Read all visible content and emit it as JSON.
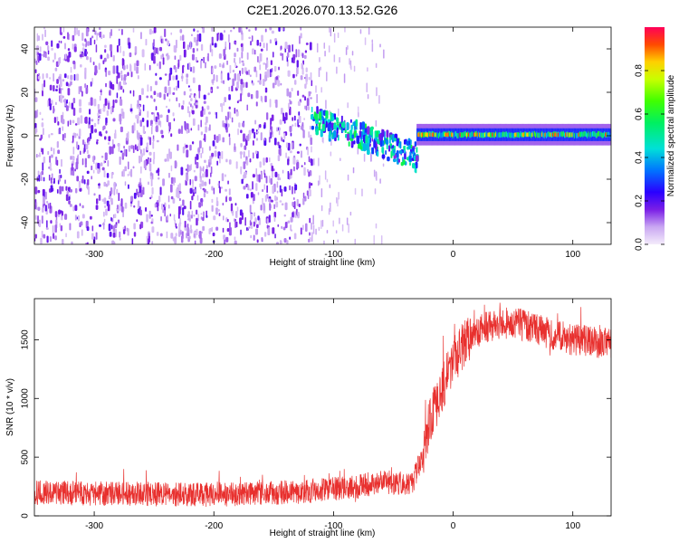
{
  "page_title": "C2E1.2026.070.13.52.G26",
  "chart_data": [
    {
      "type": "heatmap",
      "name": "spectrogram",
      "xlabel": "Height of straight line (km)",
      "ylabel": "Frequency (Hz)",
      "xlim": [
        -350,
        132
      ],
      "ylim": [
        -50,
        50
      ],
      "x_ticks": [
        -300,
        -200,
        -100,
        0,
        100
      ],
      "y_ticks": [
        -40,
        -20,
        0,
        20,
        40
      ],
      "x_tick_labels": [
        "-300",
        "-200",
        "-100",
        "0",
        "100"
      ],
      "y_tick_labels": [
        "-40",
        "-20",
        "0",
        "20",
        "40"
      ],
      "regions": [
        {
          "description": "noise",
          "x_range": [
            -350,
            -118
          ],
          "y_range": [
            -50,
            50
          ],
          "amplitude": [
            0.05,
            0.2
          ]
        },
        {
          "description": "transition band",
          "x_range": [
            -118,
            -30
          ],
          "center_y": [
            8,
            -10
          ],
          "amplitude": [
            0.15,
            0.6
          ]
        },
        {
          "description": "stable tone",
          "x_range": [
            -30,
            132
          ],
          "center_y": 0,
          "amplitude": [
            0.3,
            0.95
          ]
        }
      ],
      "colorbar": {
        "label": "Normalized spectral amplitude",
        "range": [
          0.0,
          1.0
        ],
        "ticks": [
          0.0,
          0.2,
          0.4,
          0.6,
          0.8
        ],
        "tick_labels": [
          "0.0",
          "0.2",
          "0.4",
          "0.6",
          "0.8"
        ]
      }
    },
    {
      "type": "line",
      "name": "snr",
      "xlabel": "Height of straight line (km)",
      "ylabel": "SNR (10 * v/v)",
      "xlim": [
        -350,
        132
      ],
      "ylim": [
        0,
        1850
      ],
      "x_ticks": [
        -300,
        -200,
        -100,
        0,
        100
      ],
      "y_ticks": [
        0,
        500,
        1000,
        1500
      ],
      "x_tick_labels": [
        "-300",
        "-200",
        "-100",
        "0",
        "100"
      ],
      "y_tick_labels": [
        "0",
        "500",
        "1000",
        "1500"
      ],
      "series": [
        {
          "name": "SNR",
          "color": "#e8302e",
          "x": [
            -350,
            -300,
            -250,
            -200,
            -150,
            -120,
            -100,
            -80,
            -60,
            -45,
            -35,
            -25,
            -20,
            -15,
            -10,
            -5,
            0,
            10,
            20,
            30,
            50,
            75,
            100,
            132
          ],
          "y": [
            200,
            190,
            185,
            180,
            195,
            210,
            230,
            250,
            290,
            280,
            260,
            520,
            790,
            930,
            1050,
            1200,
            1320,
            1470,
            1570,
            1620,
            1650,
            1570,
            1500,
            1470
          ]
        }
      ]
    }
  ]
}
